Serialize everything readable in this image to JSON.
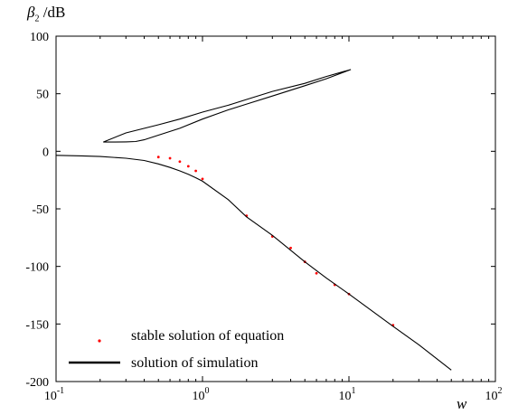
{
  "chart_data": {
    "type": "line",
    "ylabel_symbol": "β",
    "ylabel_subscript": "2",
    "ylabel_unit": "/dB",
    "xlabel": "w",
    "xscale": "log",
    "xlim": [
      0.1,
      100
    ],
    "ylim": [
      -200,
      100
    ],
    "x_ticks": [
      {
        "value": 0.1,
        "base": "10",
        "exp": "-1"
      },
      {
        "value": 1,
        "base": "10",
        "exp": "0"
      },
      {
        "value": 10,
        "base": "10",
        "exp": "1"
      },
      {
        "value": 100,
        "base": "10",
        "exp": "2"
      }
    ],
    "y_ticks": [
      100,
      50,
      0,
      -50,
      -100,
      -150,
      -200
    ],
    "grid": false,
    "legend_position": "bottom-left",
    "series": [
      {
        "name": "stable solution of equation",
        "style": "scatter",
        "color": "#ff0000",
        "points": [
          [
            0.5,
            -5
          ],
          [
            0.6,
            -6
          ],
          [
            0.7,
            -9
          ],
          [
            0.8,
            -13
          ],
          [
            0.9,
            -17
          ],
          [
            1.0,
            -24
          ],
          [
            2.0,
            -56
          ],
          [
            3.0,
            -74
          ],
          [
            4.0,
            -84
          ],
          [
            5.0,
            -96
          ],
          [
            6.0,
            -106
          ],
          [
            8.0,
            -116
          ],
          [
            10.0,
            -124
          ],
          [
            20.0,
            -151
          ]
        ]
      },
      {
        "name": "solution of simulation",
        "style": "line",
        "color": "#000000",
        "x": [
          0.1,
          0.15,
          0.2,
          0.3,
          0.4,
          0.5,
          0.6,
          0.7,
          0.8,
          0.9,
          1.0,
          1.5,
          2,
          3,
          5,
          7,
          10,
          20,
          30,
          50
        ],
        "y": [
          -3.5,
          -4,
          -4.5,
          -6,
          -8,
          -11,
          -14,
          -17,
          -20,
          -23,
          -26,
          -42,
          -57,
          -73,
          -96,
          -110,
          -124,
          -152,
          -168,
          -190
        ]
      },
      {
        "name": "",
        "style": "line",
        "color": "#000000",
        "x": [
          0.21,
          0.25,
          0.3,
          0.35,
          0.4,
          0.5,
          0.7,
          1.0,
          1.5,
          2,
          3,
          5,
          7,
          10.3,
          7,
          5,
          3,
          2,
          1.5,
          1.0,
          0.7,
          0.5,
          0.3,
          0.21
        ],
        "y": [
          8,
          8,
          8.2,
          8.5,
          10,
          14,
          20,
          28,
          36,
          41,
          48,
          57,
          63,
          71,
          65,
          59,
          52,
          45,
          40,
          34,
          28,
          23,
          16,
          8
        ]
      }
    ]
  }
}
